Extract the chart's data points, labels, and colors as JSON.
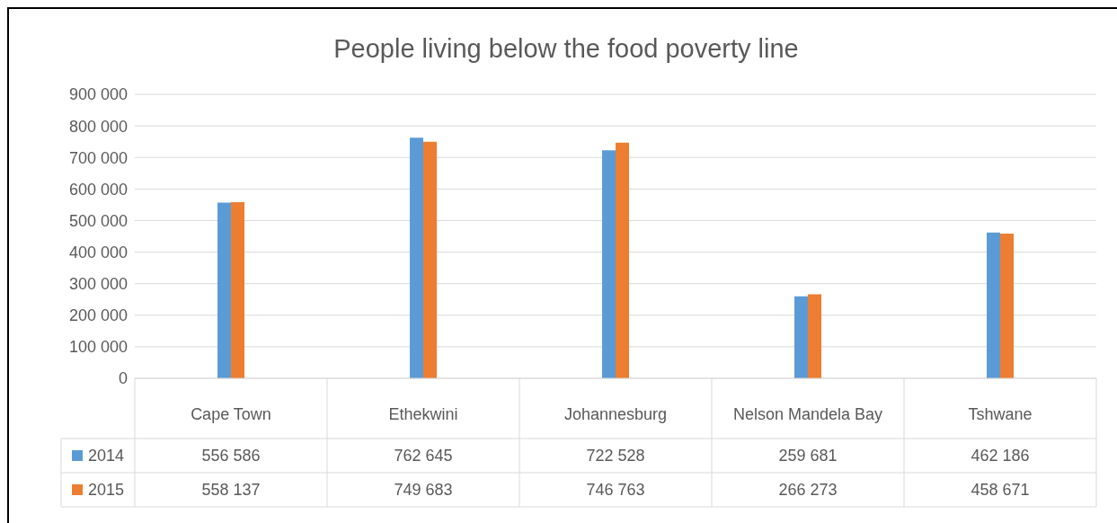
{
  "chart_data": {
    "type": "bar",
    "title": "People living below the food poverty line",
    "categories": [
      "Cape Town",
      "Ethekwini",
      "Johannesburg",
      "Nelson Mandela Bay",
      "Tshwane"
    ],
    "series": [
      {
        "name": "2014",
        "color": "#5b9bd5",
        "values": [
          556586,
          762645,
          722528,
          259681,
          462186
        ]
      },
      {
        "name": "2015",
        "color": "#ed7d31",
        "values": [
          558137,
          749683,
          746763,
          266273,
          458671
        ]
      }
    ],
    "ylim": [
      0,
      900000
    ],
    "yticks": [
      {
        "value": 0,
        "label": "0"
      },
      {
        "value": 100000,
        "label": "100 000"
      },
      {
        "value": 200000,
        "label": "200 000"
      },
      {
        "value": 300000,
        "label": "300 000"
      },
      {
        "value": 400000,
        "label": "400 000"
      },
      {
        "value": 500000,
        "label": "500 000"
      },
      {
        "value": 600000,
        "label": "600 000"
      },
      {
        "value": 700000,
        "label": "700 000"
      },
      {
        "value": 800000,
        "label": "800 000"
      },
      {
        "value": 900000,
        "label": "900 000"
      }
    ],
    "grid": "y",
    "legend": "bottom",
    "data_labels": true
  }
}
